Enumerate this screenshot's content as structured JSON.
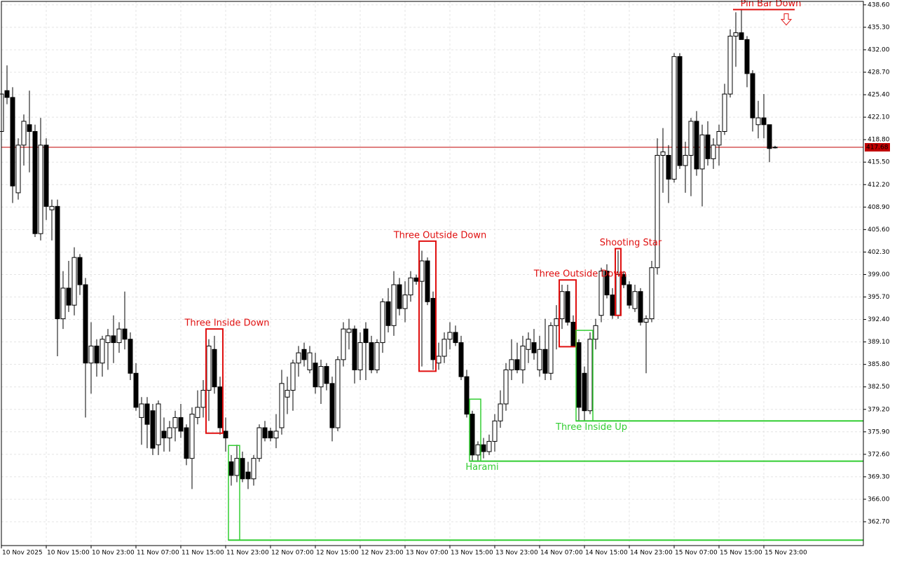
{
  "chart_data": {
    "type": "candlestick",
    "up_color": "#ffffff",
    "down_color": "#000000",
    "grid": true,
    "ylim": [
      359.2,
      439.1
    ],
    "xlim": [
      0,
      153.75
    ],
    "yticks": [
      {
        "value": 438.6,
        "label": "438.60"
      },
      {
        "value": 435.3,
        "label": "435.30"
      },
      {
        "value": 432.0,
        "label": "432.00"
      },
      {
        "value": 428.7,
        "label": "428.70"
      },
      {
        "value": 425.4,
        "label": "425.40"
      },
      {
        "value": 422.1,
        "label": "422.10"
      },
      {
        "value": 418.8,
        "label": "418.80"
      },
      {
        "value": 415.5,
        "label": "415.50"
      },
      {
        "value": 412.2,
        "label": "412.20"
      },
      {
        "value": 408.9,
        "label": "408.90"
      },
      {
        "value": 405.6,
        "label": "405.60"
      },
      {
        "value": 402.3,
        "label": "402.30"
      },
      {
        "value": 399.0,
        "label": "399.00"
      },
      {
        "value": 395.7,
        "label": "395.70"
      },
      {
        "value": 392.4,
        "label": "392.40"
      },
      {
        "value": 389.1,
        "label": "389.10"
      },
      {
        "value": 385.8,
        "label": "385.80"
      },
      {
        "value": 382.5,
        "label": "382.50"
      },
      {
        "value": 379.2,
        "label": "379.20"
      },
      {
        "value": 375.9,
        "label": "375.90"
      },
      {
        "value": 372.6,
        "label": "372.60"
      },
      {
        "value": 369.3,
        "label": "369.30"
      },
      {
        "value": 366.0,
        "label": "366.00"
      },
      {
        "value": 362.7,
        "label": "362.70"
      }
    ],
    "xticks": [
      {
        "value": 0,
        "label": "10 Nov 2025"
      },
      {
        "value": 8,
        "label": "10 Nov 15:00"
      },
      {
        "value": 16,
        "label": "10 Nov 23:00"
      },
      {
        "value": 24,
        "label": "11 Nov 07:00"
      },
      {
        "value": 32,
        "label": "11 Nov 15:00"
      },
      {
        "value": 40,
        "label": "11 Nov 23:00"
      },
      {
        "value": 48,
        "label": "12 Nov 07:00"
      },
      {
        "value": 56,
        "label": "12 Nov 15:00"
      },
      {
        "value": 64,
        "label": "12 Nov 23:00"
      },
      {
        "value": 72,
        "label": "13 Nov 07:00"
      },
      {
        "value": 80,
        "label": "13 Nov 15:00"
      },
      {
        "value": 88,
        "label": "13 Nov 23:00"
      },
      {
        "value": 96,
        "label": "14 Nov 07:00"
      },
      {
        "value": 104,
        "label": "14 Nov 15:00"
      },
      {
        "value": 112,
        "label": "14 Nov 23:00"
      },
      {
        "value": 120,
        "label": "15 Nov 07:00"
      },
      {
        "value": 128,
        "label": "15 Nov 15:00"
      },
      {
        "value": 136,
        "label": "15 Nov 23:00"
      }
    ],
    "current_price": 417.68,
    "current_price_color": "#c00000",
    "candles": [
      [
        420.0,
        429.5,
        418.5,
        425.5
      ],
      [
        426.0,
        429.7,
        424.0,
        425.0
      ],
      [
        425.0,
        426.5,
        409.5,
        412.0
      ],
      [
        411.0,
        419.0,
        410.0,
        418.0
      ],
      [
        418.0,
        422.5,
        415.0,
        421.5
      ],
      [
        421.0,
        426.0,
        414.0,
        420.0
      ],
      [
        420.0,
        421.0,
        404.5,
        405.0
      ],
      [
        405.0,
        422.0,
        404.0,
        418.0
      ],
      [
        418.0,
        419.0,
        407.0,
        409.0
      ],
      [
        408.5,
        410.0,
        404.0,
        409.0
      ],
      [
        409.0,
        410.0,
        387.0,
        392.5
      ],
      [
        392.5,
        399.5,
        391.0,
        397.0
      ],
      [
        397.0,
        401.0,
        393.5,
        394.5
      ],
      [
        394.5,
        403.0,
        393.0,
        401.5
      ],
      [
        401.5,
        402.0,
        396.0,
        397.5
      ],
      [
        397.5,
        398.5,
        378.0,
        386.0
      ],
      [
        386.0,
        392.0,
        381.5,
        388.5
      ],
      [
        388.5,
        389.5,
        384.0,
        386.0
      ],
      [
        386.0,
        390.0,
        384.0,
        389.5
      ],
      [
        389.0,
        391.0,
        385.0,
        390.0
      ],
      [
        390.0,
        393.0,
        386.0,
        389.0
      ],
      [
        389.0,
        392.0,
        387.5,
        391.0
      ],
      [
        391.0,
        396.5,
        388.0,
        389.5
      ],
      [
        389.5,
        390.5,
        383.5,
        384.5
      ],
      [
        384.5,
        386.0,
        379.0,
        379.5
      ],
      [
        378.0,
        381.0,
        374.0,
        380.0
      ],
      [
        380.0,
        381.0,
        373.5,
        377.0
      ],
      [
        379.0,
        380.0,
        372.5,
        373.5
      ],
      [
        374.0,
        380.5,
        372.5,
        380.0
      ],
      [
        376.0,
        378.0,
        373.0,
        375.0
      ],
      [
        375.0,
        377.5,
        373.0,
        376.5
      ],
      [
        376.5,
        379.0,
        374.5,
        378.0
      ],
      [
        378.0,
        380.0,
        375.0,
        376.0
      ],
      [
        376.5,
        377.0,
        371.0,
        372.0
      ],
      [
        372.0,
        379.5,
        367.5,
        378.5
      ],
      [
        378.0,
        382.0,
        377.0,
        379.5
      ],
      [
        379.5,
        383.5,
        378.0,
        382.0
      ],
      [
        382.0,
        389.5,
        377.5,
        388.5
      ],
      [
        388.0,
        390.0,
        381.5,
        382.5
      ],
      [
        382.5,
        384.0,
        375.5,
        376.5
      ],
      [
        376.0,
        378.0,
        373.0,
        375.0
      ],
      [
        371.5,
        372.5,
        368.0,
        369.5
      ],
      [
        369.5,
        374.0,
        368.5,
        372.0
      ],
      [
        372.0,
        373.0,
        368.5,
        369.0
      ],
      [
        370.0,
        371.5,
        367.5,
        369.0
      ],
      [
        369.0,
        372.5,
        368.0,
        372.0
      ],
      [
        372.0,
        377.0,
        371.5,
        376.5
      ],
      [
        376.5,
        377.5,
        374.5,
        375.0
      ],
      [
        376.0,
        376.5,
        374.5,
        375.0
      ],
      [
        375.0,
        378.5,
        373.5,
        376.0
      ],
      [
        376.5,
        385.0,
        375.5,
        383.0
      ],
      [
        381.0,
        384.0,
        378.5,
        382.0
      ],
      [
        382.0,
        386.5,
        379.0,
        386.0
      ],
      [
        386.0,
        388.5,
        384.0,
        387.5
      ],
      [
        388.0,
        389.0,
        385.5,
        386.5
      ],
      [
        385.0,
        388.5,
        384.5,
        387.5
      ],
      [
        386.0,
        387.5,
        381.5,
        382.5
      ],
      [
        382.5,
        386.5,
        380.0,
        385.5
      ],
      [
        385.5,
        386.0,
        382.0,
        383.0
      ],
      [
        383.0,
        384.0,
        374.5,
        376.5
      ],
      [
        376.5,
        387.0,
        376.0,
        386.5
      ],
      [
        386.5,
        392.0,
        385.5,
        391.0
      ],
      [
        390.5,
        392.5,
        388.0,
        391.0
      ],
      [
        391.0,
        391.5,
        383.0,
        385.0
      ],
      [
        385.0,
        390.5,
        383.5,
        389.0
      ],
      [
        391.0,
        392.0,
        383.5,
        389.0
      ],
      [
        389.0,
        390.0,
        384.5,
        385.0
      ],
      [
        385.0,
        389.5,
        384.5,
        389.0
      ],
      [
        389.0,
        395.5,
        387.5,
        395.0
      ],
      [
        395.0,
        397.0,
        390.5,
        391.5
      ],
      [
        391.5,
        399.5,
        390.0,
        397.5
      ],
      [
        397.5,
        398.5,
        393.0,
        394.0
      ],
      [
        394.0,
        398.0,
        392.0,
        396.0
      ],
      [
        396.0,
        399.5,
        395.0,
        398.5
      ],
      [
        398.5,
        399.0,
        397.5,
        398.0
      ],
      [
        398.0,
        402.5,
        385.5,
        401.0
      ],
      [
        401.0,
        401.5,
        394.5,
        395.0
      ],
      [
        395.5,
        396.5,
        385.0,
        386.5
      ],
      [
        386.0,
        389.0,
        385.0,
        387.0
      ],
      [
        387.0,
        390.5,
        386.0,
        389.5
      ],
      [
        389.5,
        392.0,
        388.0,
        390.5
      ],
      [
        390.5,
        391.5,
        388.5,
        389.0
      ],
      [
        389.0,
        390.0,
        383.5,
        384.0
      ],
      [
        384.0,
        385.0,
        378.0,
        378.5
      ],
      [
        378.5,
        379.0,
        371.5,
        372.5
      ],
      [
        372.5,
        374.5,
        371.5,
        374.0
      ],
      [
        374.0,
        375.0,
        372.0,
        373.0
      ],
      [
        373.0,
        375.5,
        372.5,
        374.5
      ],
      [
        374.5,
        378.5,
        373.0,
        377.5
      ],
      [
        377.5,
        382.0,
        376.5,
        380.0
      ],
      [
        380.0,
        386.0,
        379.0,
        385.0
      ],
      [
        385.0,
        389.5,
        383.5,
        386.5
      ],
      [
        386.5,
        389.0,
        384.5,
        385.0
      ],
      [
        385.0,
        390.0,
        383.0,
        388.5
      ],
      [
        388.0,
        390.5,
        386.0,
        389.5
      ],
      [
        389.0,
        391.0,
        386.5,
        387.5
      ],
      [
        385.0,
        390.0,
        384.0,
        388.0
      ],
      [
        388.0,
        392.5,
        383.5,
        384.5
      ],
      [
        384.5,
        392.0,
        383.5,
        391.5
      ],
      [
        391.5,
        394.5,
        388.0,
        392.5
      ],
      [
        392.5,
        397.5,
        391.0,
        396.5
      ],
      [
        396.5,
        397.5,
        391.5,
        392.0
      ],
      [
        392.0,
        393.0,
        388.5,
        388.5
      ],
      [
        389.0,
        389.5,
        377.5,
        379.5
      ],
      [
        384.5,
        385.5,
        377.5,
        379.0
      ],
      [
        379.0,
        390.5,
        378.5,
        389.5
      ],
      [
        389.5,
        392.5,
        388.0,
        391.5
      ],
      [
        393.0,
        400.0,
        392.0,
        399.5
      ],
      [
        399.5,
        400.5,
        395.5,
        396.0
      ],
      [
        396.0,
        397.0,
        392.5,
        393.0
      ],
      [
        393.0,
        402.5,
        392.5,
        399.0
      ],
      [
        399.0,
        399.5,
        397.0,
        397.5
      ],
      [
        397.5,
        398.0,
        394.0,
        394.5
      ],
      [
        394.0,
        397.5,
        393.5,
        396.5
      ],
      [
        396.5,
        397.0,
        391.5,
        392.0
      ],
      [
        392.0,
        393.0,
        384.5,
        392.5
      ],
      [
        392.5,
        401.0,
        392.0,
        400.0
      ],
      [
        400.0,
        419.0,
        399.0,
        416.5
      ],
      [
        416.5,
        420.5,
        411.0,
        417.0
      ],
      [
        416.5,
        418.0,
        409.5,
        413.0
      ],
      [
        413.0,
        431.5,
        412.5,
        431.0
      ],
      [
        431.0,
        431.5,
        414.5,
        415.0
      ],
      [
        415.0,
        418.5,
        411.0,
        416.5
      ],
      [
        416.5,
        422.0,
        410.5,
        421.5
      ],
      [
        421.5,
        423.0,
        413.5,
        414.5
      ],
      [
        414.5,
        421.0,
        409.0,
        419.5
      ],
      [
        419.5,
        421.5,
        415.0,
        416.0
      ],
      [
        416.0,
        419.0,
        414.5,
        418.0
      ],
      [
        418.0,
        421.0,
        415.0,
        420.0
      ],
      [
        420.0,
        427.0,
        419.5,
        425.5
      ],
      [
        425.5,
        435.0,
        425.0,
        434.0
      ],
      [
        434.0,
        437.5,
        429.5,
        434.5
      ],
      [
        434.5,
        438.0,
        433.5,
        433.5
      ],
      [
        433.5,
        434.0,
        426.5,
        428.5
      ],
      [
        428.5,
        429.0,
        420.0,
        422.0
      ],
      [
        421.0,
        424.5,
        419.0,
        422.0
      ],
      [
        422.0,
        425.5,
        419.0,
        421.0
      ],
      [
        421.0,
        421.0,
        415.5,
        417.5
      ],
      [
        417.6,
        417.9,
        417.5,
        417.7
      ]
    ],
    "patterns": [
      {
        "name": "Three Inside Down",
        "color": "#e01010",
        "start": 37,
        "end": 39,
        "top": 391.0,
        "bottom": 375.7
      },
      {
        "name": "Three Outside Down",
        "color": "#e01010",
        "start": 75,
        "end": 77,
        "top": 403.9,
        "bottom": 384.8
      },
      {
        "name": "Three Outside Down",
        "color": "#e01010",
        "start": 100,
        "end": 102,
        "top": 398.2,
        "bottom": 388.4
      },
      {
        "name": "Shooting Star",
        "color": "#e01010",
        "start": 110,
        "end": 110,
        "top": 402.8,
        "bottom": 393.0
      },
      {
        "name": "Pin Bar Down",
        "color": "#e01010",
        "start": 131,
        "end": 141,
        "level": 437.9
      },
      {
        "name": "Harami",
        "color": "#32cd32",
        "start": 84,
        "end": 85,
        "top": 380.7,
        "level": 371.6
      },
      {
        "name": "Three Inside Up",
        "color": "#32cd32",
        "start": 103,
        "end": 105,
        "top": 390.8,
        "level": 377.5
      },
      {
        "color": "#32cd32",
        "start": 41,
        "end": 42,
        "top": 373.9,
        "level": 360.0
      }
    ]
  }
}
